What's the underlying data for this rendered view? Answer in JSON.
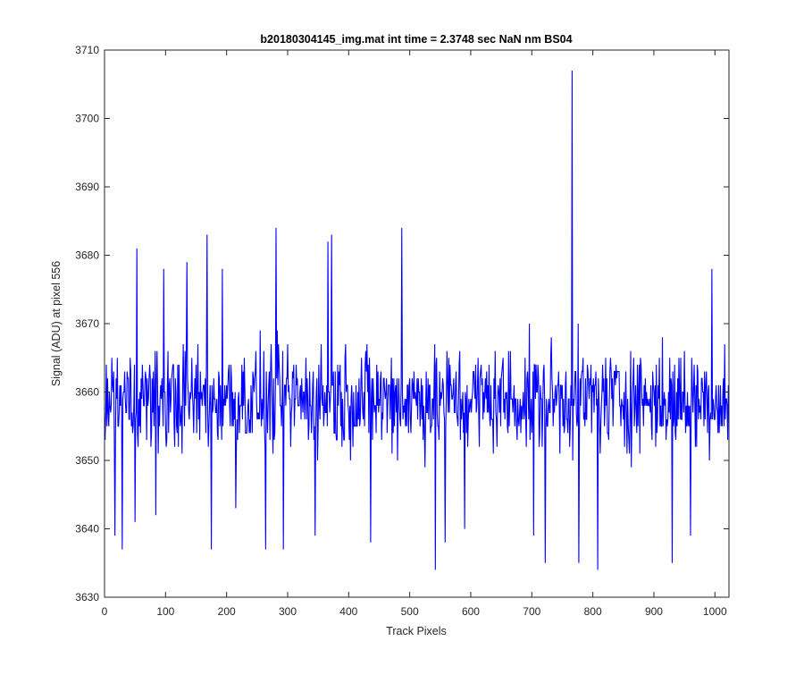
{
  "chart_data": {
    "type": "line",
    "title": "b20180304145_img.mat int time = 2.3748 sec  NaN nm BS04",
    "xlabel": "Track Pixels",
    "ylabel": "Signal (ADU) at pixel 556",
    "xlim": [
      0,
      1023
    ],
    "ylim": [
      3630,
      3710
    ],
    "xticks": [
      0,
      100,
      200,
      300,
      400,
      500,
      600,
      700,
      800,
      900,
      1000
    ],
    "yticks": [
      3630,
      3640,
      3650,
      3660,
      3670,
      3680,
      3690,
      3700,
      3710
    ],
    "grid": false,
    "legend": "none",
    "series": [
      {
        "color": "#0000ff",
        "n_points": 1024,
        "baseline": 3659,
        "noise_amplitude": 7,
        "features": [
          {
            "x": 17,
            "y": 3639
          },
          {
            "x": 29,
            "y": 3637
          },
          {
            "x": 50,
            "y": 3641
          },
          {
            "x": 53,
            "y": 3681
          },
          {
            "x": 84,
            "y": 3642
          },
          {
            "x": 97,
            "y": 3678
          },
          {
            "x": 135,
            "y": 3679
          },
          {
            "x": 168,
            "y": 3683
          },
          {
            "x": 175,
            "y": 3637
          },
          {
            "x": 193,
            "y": 3678
          },
          {
            "x": 215,
            "y": 3643
          },
          {
            "x": 264,
            "y": 3637
          },
          {
            "x": 281,
            "y": 3684
          },
          {
            "x": 293,
            "y": 3637
          },
          {
            "x": 345,
            "y": 3639
          },
          {
            "x": 366,
            "y": 3682
          },
          {
            "x": 372,
            "y": 3683
          },
          {
            "x": 436,
            "y": 3638
          },
          {
            "x": 487,
            "y": 3684
          },
          {
            "x": 542,
            "y": 3634
          },
          {
            "x": 558,
            "y": 3638
          },
          {
            "x": 590,
            "y": 3640
          },
          {
            "x": 703,
            "y": 3639
          },
          {
            "x": 722,
            "y": 3635
          },
          {
            "x": 766,
            "y": 3707
          },
          {
            "x": 777,
            "y": 3635
          },
          {
            "x": 808,
            "y": 3634
          },
          {
            "x": 930,
            "y": 3635
          },
          {
            "x": 960,
            "y": 3639
          },
          {
            "x": 995,
            "y": 3678
          }
        ]
      }
    ]
  }
}
